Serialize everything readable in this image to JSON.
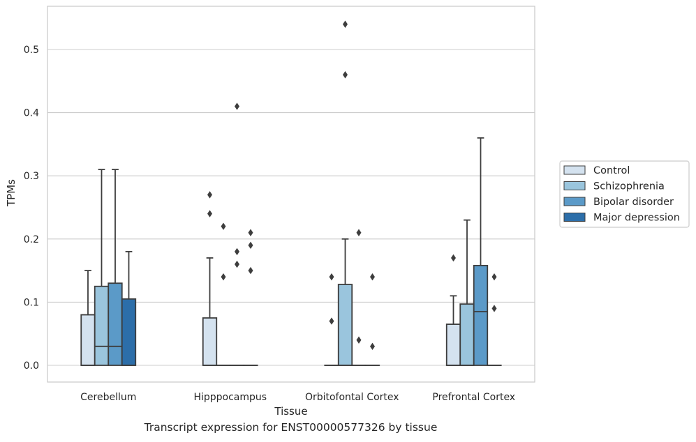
{
  "chart_data": {
    "type": "box",
    "xlabel": "Tissue",
    "ylabel": "TPMs",
    "ylim": [
      -0.026,
      0.57
    ],
    "yticks": [
      0.0,
      0.1,
      0.2,
      0.3,
      0.4,
      0.5
    ],
    "ytick_labels": [
      "0.0",
      "0.1",
      "0.2",
      "0.3",
      "0.4",
      "0.5"
    ],
    "grid": "horizontal",
    "legend_position": "right",
    "categories": [
      "Cerebellum",
      "Hipppocampus",
      "Orbitofontal Cortex",
      "Prefrontal Cortex"
    ],
    "series": [
      {
        "name": "Control",
        "color": "#d4e2ef",
        "boxes": [
          {
            "category": "Cerebellum",
            "q1": 0,
            "median": 0,
            "q3": 0.08,
            "whisker_low": 0,
            "whisker_high": 0.15,
            "outliers": []
          },
          {
            "category": "Hipppocampus",
            "q1": 0,
            "median": 0,
            "q3": 0.075,
            "whisker_low": 0,
            "whisker_high": 0.17,
            "outliers": [
              0.24,
              0.27
            ]
          },
          {
            "category": "Orbitofontal Cortex",
            "q1": 0,
            "median": 0,
            "q3": 0,
            "whisker_low": 0,
            "whisker_high": 0,
            "outliers": [
              0.07,
              0.14
            ]
          },
          {
            "category": "Prefrontal Cortex",
            "q1": 0,
            "median": 0,
            "q3": 0.065,
            "whisker_low": 0,
            "whisker_high": 0.11,
            "outliers": [
              0.17
            ]
          }
        ]
      },
      {
        "name": "Schizophrenia",
        "color": "#9ac5dd",
        "boxes": [
          {
            "category": "Cerebellum",
            "q1": 0,
            "median": 0.03,
            "q3": 0.125,
            "whisker_low": 0,
            "whisker_high": 0.31,
            "outliers": []
          },
          {
            "category": "Hipppocampus",
            "q1": 0,
            "median": 0,
            "q3": 0,
            "whisker_low": 0,
            "whisker_high": 0,
            "outliers": [
              0.14,
              0.22
            ]
          },
          {
            "category": "Orbitofontal Cortex",
            "q1": 0,
            "median": 0,
            "q3": 0.128,
            "whisker_low": 0,
            "whisker_high": 0.2,
            "outliers": [
              0.46,
              0.54
            ]
          },
          {
            "category": "Prefrontal Cortex",
            "q1": 0,
            "median": 0,
            "q3": 0.097,
            "whisker_low": 0,
            "whisker_high": 0.23,
            "outliers": []
          }
        ]
      },
      {
        "name": "Bipolar disorder",
        "color": "#5b9ac8",
        "boxes": [
          {
            "category": "Cerebellum",
            "q1": 0,
            "median": 0.03,
            "q3": 0.13,
            "whisker_low": 0,
            "whisker_high": 0.31,
            "outliers": []
          },
          {
            "category": "Hipppocampus",
            "q1": 0,
            "median": 0,
            "q3": 0,
            "whisker_low": 0,
            "whisker_high": 0,
            "outliers": [
              0.16,
              0.18,
              0.41
            ]
          },
          {
            "category": "Orbitofontal Cortex",
            "q1": 0,
            "median": 0,
            "q3": 0,
            "whisker_low": 0,
            "whisker_high": 0,
            "outliers": [
              0.04,
              0.21
            ]
          },
          {
            "category": "Prefrontal Cortex",
            "q1": 0,
            "median": 0.085,
            "q3": 0.158,
            "whisker_low": 0,
            "whisker_high": 0.36,
            "outliers": []
          }
        ]
      },
      {
        "name": "Major depression",
        "color": "#2c6ea9",
        "boxes": [
          {
            "category": "Cerebellum",
            "q1": 0,
            "median": 0,
            "q3": 0.105,
            "whisker_low": 0,
            "whisker_high": 0.18,
            "outliers": []
          },
          {
            "category": "Hipppocampus",
            "q1": 0,
            "median": 0,
            "q3": 0,
            "whisker_low": 0,
            "whisker_high": 0,
            "outliers": [
              0.15,
              0.19,
              0.21
            ]
          },
          {
            "category": "Orbitofontal Cortex",
            "q1": 0,
            "median": 0,
            "q3": 0,
            "whisker_low": 0,
            "whisker_high": 0,
            "outliers": [
              0.03,
              0.14
            ]
          },
          {
            "category": "Prefrontal Cortex",
            "q1": 0,
            "median": 0,
            "q3": 0,
            "whisker_low": 0,
            "whisker_high": 0,
            "outliers": [
              0.09,
              0.14
            ]
          }
        ]
      }
    ]
  },
  "caption": "Transcript expression for ENST00000577326 by tissue",
  "colors": {
    "grid": "#cccccc",
    "spine": "#cccccc",
    "box_edge": "#3d3d3d",
    "outlier": "#3d3d3d"
  }
}
